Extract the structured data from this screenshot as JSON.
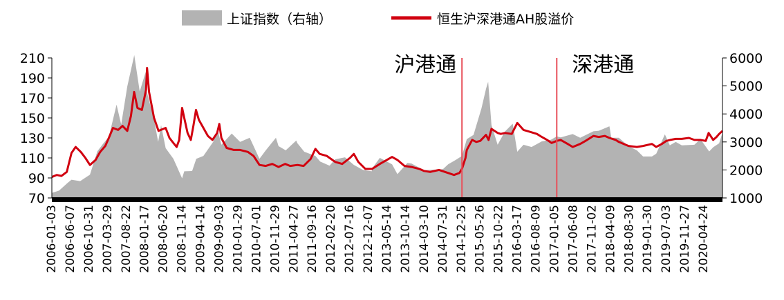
{
  "chart_data": {
    "type": "line",
    "legend": {
      "placement": "top",
      "entries": [
        {
          "label": "上证指数（右轴）",
          "kind": "area",
          "color": "#b3b3b3"
        },
        {
          "label": "恒生沪深港通AH股溢价",
          "kind": "line",
          "color": "#d1000f"
        }
      ]
    },
    "y_left": {
      "ticks": [
        70,
        90,
        110,
        130,
        150,
        170,
        190,
        210
      ],
      "range": [
        70,
        210
      ]
    },
    "y_right": {
      "ticks": [
        1000,
        2000,
        3000,
        4000,
        5000,
        6000
      ],
      "range": [
        1000,
        6000
      ]
    },
    "x_labels": [
      "2006-01-03",
      "2006-06-07",
      "2006-10-31",
      "2007-03-29",
      "2007-08-22",
      "2008-01-17",
      "2008-06-20",
      "2008-11-14",
      "2009-04-14",
      "2009-09-03",
      "2010-01-29",
      "2010-07-01",
      "2010-11-29",
      "2011-04-27",
      "2011-09-16",
      "2012-02-20",
      "2012-07-16",
      "2012-12-07",
      "2013-05-14",
      "2013-10-14",
      "2014-03-10",
      "2014-07-31",
      "2014-12-25",
      "2015-05-26",
      "2015-10-22",
      "2016-03-17",
      "2016-08-09",
      "2017-01-05",
      "2017-06-08",
      "2017-11-02",
      "2018-04-09",
      "2018-08-30",
      "2019-01-30",
      "2019-07-03",
      "2019-11-27",
      "2020-04-24"
    ],
    "annotations": [
      {
        "text": "沪港通",
        "date": "2014-11-17"
      },
      {
        "text": "深港通",
        "date": "2016-12-05"
      }
    ],
    "series": [
      {
        "name": "上证指数（右轴）",
        "axis": "right",
        "type": "area",
        "points": [
          [
            "2006-01-03",
            1180
          ],
          [
            "2006-03-01",
            1260
          ],
          [
            "2006-05-10",
            1550
          ],
          [
            "2006-06-07",
            1650
          ],
          [
            "2006-08-15",
            1600
          ],
          [
            "2006-10-31",
            1830
          ],
          [
            "2006-12-29",
            2670
          ],
          [
            "2007-02-15",
            2950
          ],
          [
            "2007-03-29",
            3180
          ],
          [
            "2007-05-29",
            4330
          ],
          [
            "2007-07-05",
            3620
          ],
          [
            "2007-08-22",
            4980
          ],
          [
            "2007-10-16",
            6100
          ],
          [
            "2007-11-28",
            4800
          ],
          [
            "2008-01-14",
            5500
          ],
          [
            "2008-01-17",
            4900
          ],
          [
            "2008-03-20",
            3800
          ],
          [
            "2008-04-22",
            3000
          ],
          [
            "2008-05-15",
            3600
          ],
          [
            "2008-06-20",
            2780
          ],
          [
            "2008-08-20",
            2400
          ],
          [
            "2008-10-28",
            1700
          ],
          [
            "2008-11-14",
            1950
          ],
          [
            "2009-01-15",
            1960
          ],
          [
            "2009-02-17",
            2400
          ],
          [
            "2009-04-14",
            2500
          ],
          [
            "2009-06-30",
            3000
          ],
          [
            "2009-08-04",
            3450
          ],
          [
            "2009-09-03",
            2900
          ],
          [
            "2009-11-24",
            3300
          ],
          [
            "2010-01-29",
            3000
          ],
          [
            "2010-04-15",
            3150
          ],
          [
            "2010-07-01",
            2400
          ],
          [
            "2010-08-20",
            2700
          ],
          [
            "2010-11-08",
            3150
          ],
          [
            "2010-11-29",
            2850
          ],
          [
            "2011-01-25",
            2700
          ],
          [
            "2011-04-18",
            3050
          ],
          [
            "2011-04-27",
            2950
          ],
          [
            "2011-06-20",
            2650
          ],
          [
            "2011-09-16",
            2500
          ],
          [
            "2011-10-24",
            2300
          ],
          [
            "2012-01-06",
            2150
          ],
          [
            "2012-02-20",
            2380
          ],
          [
            "2012-05-07",
            2450
          ],
          [
            "2012-07-16",
            2180
          ],
          [
            "2012-09-26",
            2000
          ],
          [
            "2012-12-04",
            1950
          ],
          [
            "2012-12-07",
            2050
          ],
          [
            "2013-02-06",
            2430
          ],
          [
            "2013-05-14",
            2200
          ],
          [
            "2013-06-25",
            1850
          ],
          [
            "2013-09-12",
            2250
          ],
          [
            "2013-10-14",
            2230
          ],
          [
            "2014-01-20",
            1990
          ],
          [
            "2014-03-10",
            2000
          ],
          [
            "2014-06-20",
            2030
          ],
          [
            "2014-07-31",
            2200
          ],
          [
            "2014-09-30",
            2360
          ],
          [
            "2014-11-17",
            2500
          ],
          [
            "2014-12-25",
            3100
          ],
          [
            "2015-02-16",
            3250
          ],
          [
            "2015-04-20",
            4200
          ],
          [
            "2015-05-26",
            4900
          ],
          [
            "2015-06-12",
            5150
          ],
          [
            "2015-07-08",
            3600
          ],
          [
            "2015-08-26",
            2900
          ],
          [
            "2015-10-22",
            3370
          ],
          [
            "2015-12-23",
            3650
          ],
          [
            "2016-01-28",
            2650
          ],
          [
            "2016-03-17",
            2900
          ],
          [
            "2016-05-20",
            2820
          ],
          [
            "2016-08-09",
            3020
          ],
          [
            "2016-10-20",
            3080
          ],
          [
            "2016-12-05",
            3200
          ],
          [
            "2017-01-05",
            3160
          ],
          [
            "2017-04-10",
            3280
          ],
          [
            "2017-06-08",
            3150
          ],
          [
            "2017-09-20",
            3380
          ],
          [
            "2017-11-02",
            3400
          ],
          [
            "2018-01-25",
            3560
          ],
          [
            "2018-02-09",
            3150
          ],
          [
            "2018-04-09",
            3150
          ],
          [
            "2018-06-25",
            2850
          ],
          [
            "2018-08-30",
            2700
          ],
          [
            "2018-10-18",
            2480
          ],
          [
            "2018-12-27",
            2480
          ],
          [
            "2019-01-30",
            2580
          ],
          [
            "2019-04-08",
            3270
          ],
          [
            "2019-05-17",
            2880
          ],
          [
            "2019-07-03",
            3000
          ],
          [
            "2019-08-20",
            2880
          ],
          [
            "2019-11-27",
            2900
          ],
          [
            "2020-01-14",
            3100
          ],
          [
            "2020-03-23",
            2660
          ],
          [
            "2020-04-24",
            2810
          ],
          [
            "2020-06-10",
            2950
          ],
          [
            "2020-07-06",
            3330
          ]
        ]
      },
      {
        "name": "恒生沪深港通AH股溢价",
        "axis": "left",
        "type": "line",
        "points": [
          [
            "2006-01-03",
            91
          ],
          [
            "2006-02-10",
            93
          ],
          [
            "2006-03-20",
            92
          ],
          [
            "2006-05-01",
            96
          ],
          [
            "2006-06-07",
            115
          ],
          [
            "2006-07-10",
            121
          ],
          [
            "2006-08-20",
            116
          ],
          [
            "2006-09-25",
            110
          ],
          [
            "2006-10-31",
            103
          ],
          [
            "2006-12-15",
            108
          ],
          [
            "2007-01-20",
            116
          ],
          [
            "2007-03-01",
            122
          ],
          [
            "2007-03-29",
            130
          ],
          [
            "2007-05-01",
            140
          ],
          [
            "2007-06-10",
            138
          ],
          [
            "2007-07-15",
            142
          ],
          [
            "2007-08-22",
            137
          ],
          [
            "2007-09-20",
            152
          ],
          [
            "2007-10-15",
            176
          ],
          [
            "2007-11-10",
            160
          ],
          [
            "2007-12-15",
            158
          ],
          [
            "2008-01-17",
            178
          ],
          [
            "2008-01-25",
            200
          ],
          [
            "2008-02-10",
            176
          ],
          [
            "2008-03-20",
            150
          ],
          [
            "2008-04-25",
            137
          ],
          [
            "2008-06-20",
            140
          ],
          [
            "2008-07-20",
            130
          ],
          [
            "2008-08-20",
            125
          ],
          [
            "2008-09-15",
            121
          ],
          [
            "2008-10-05",
            128
          ],
          [
            "2008-10-28",
            160
          ],
          [
            "2008-11-14",
            150
          ],
          [
            "2008-12-10",
            135
          ],
          [
            "2009-01-05",
            128
          ],
          [
            "2009-01-25",
            142
          ],
          [
            "2009-02-15",
            158
          ],
          [
            "2009-03-10",
            148
          ],
          [
            "2009-04-14",
            140
          ],
          [
            "2009-05-20",
            132
          ],
          [
            "2009-06-25",
            128
          ],
          [
            "2009-08-01",
            135
          ],
          [
            "2009-08-18",
            144
          ],
          [
            "2009-09-03",
            130
          ],
          [
            "2009-10-15",
            120
          ],
          [
            "2009-12-10",
            118
          ],
          [
            "2010-01-29",
            118
          ],
          [
            "2010-04-01",
            116
          ],
          [
            "2010-05-15",
            112
          ],
          [
            "2010-07-01",
            103
          ],
          [
            "2010-08-20",
            102
          ],
          [
            "2010-10-10",
            104
          ],
          [
            "2010-11-29",
            101
          ],
          [
            "2011-01-20",
            104
          ],
          [
            "2011-03-01",
            102
          ],
          [
            "2011-04-27",
            103
          ],
          [
            "2011-06-15",
            102
          ],
          [
            "2011-08-10",
            109
          ],
          [
            "2011-09-16",
            119
          ],
          [
            "2011-10-20",
            114
          ],
          [
            "2011-12-15",
            112
          ],
          [
            "2012-02-20",
            106
          ],
          [
            "2012-04-15",
            104
          ],
          [
            "2012-06-15",
            110
          ],
          [
            "2012-07-16",
            114
          ],
          [
            "2012-08-20",
            106
          ],
          [
            "2012-10-15",
            99
          ],
          [
            "2012-12-07",
            99
          ],
          [
            "2013-02-06",
            104
          ],
          [
            "2013-03-20",
            107
          ],
          [
            "2013-05-14",
            111
          ],
          [
            "2013-06-25",
            108
          ],
          [
            "2013-08-20",
            102
          ],
          [
            "2013-10-14",
            101
          ],
          [
            "2013-12-15",
            99
          ],
          [
            "2014-01-20",
            97
          ],
          [
            "2014-03-10",
            96
          ],
          [
            "2014-05-20",
            98
          ],
          [
            "2014-07-31",
            95
          ],
          [
            "2014-09-15",
            93
          ],
          [
            "2014-10-28",
            95
          ],
          [
            "2014-11-17",
            99
          ],
          [
            "2014-12-15",
            110
          ],
          [
            "2014-12-25",
            118
          ],
          [
            "2015-02-05",
            128
          ],
          [
            "2015-03-10",
            126
          ],
          [
            "2015-04-10",
            127
          ],
          [
            "2015-05-26",
            133
          ],
          [
            "2015-06-15",
            128
          ],
          [
            "2015-07-08",
            139
          ],
          [
            "2015-08-26",
            135
          ],
          [
            "2015-09-20",
            134
          ],
          [
            "2015-10-22",
            135
          ],
          [
            "2015-12-15",
            134
          ],
          [
            "2016-01-28",
            145
          ],
          [
            "2016-03-17",
            138
          ],
          [
            "2016-05-10",
            136
          ],
          [
            "2016-07-01",
            134
          ],
          [
            "2016-08-09",
            131
          ],
          [
            "2016-09-20",
            128
          ],
          [
            "2016-10-25",
            125
          ],
          [
            "2016-12-05",
            127
          ],
          [
            "2017-01-05",
            128
          ],
          [
            "2017-03-01",
            124
          ],
          [
            "2017-04-10",
            121
          ],
          [
            "2017-06-08",
            124
          ],
          [
            "2017-07-20",
            127
          ],
          [
            "2017-09-20",
            132
          ],
          [
            "2017-11-02",
            131
          ],
          [
            "2017-12-20",
            132
          ],
          [
            "2018-01-25",
            130
          ],
          [
            "2018-03-15",
            128
          ],
          [
            "2018-04-09",
            126
          ],
          [
            "2018-06-25",
            122
          ],
          [
            "2018-08-30",
            121
          ],
          [
            "2018-10-18",
            122
          ],
          [
            "2018-12-27",
            124
          ],
          [
            "2019-01-30",
            121
          ],
          [
            "2019-03-15",
            124
          ],
          [
            "2019-04-20",
            127
          ],
          [
            "2019-05-20",
            128
          ],
          [
            "2019-07-03",
            129
          ],
          [
            "2019-08-20",
            129
          ],
          [
            "2019-10-15",
            130
          ],
          [
            "2019-11-27",
            128
          ],
          [
            "2020-01-14",
            128
          ],
          [
            "2020-02-25",
            127
          ],
          [
            "2020-03-19",
            135
          ],
          [
            "2020-04-24",
            128
          ],
          [
            "2020-05-20",
            131
          ],
          [
            "2020-06-10",
            134
          ],
          [
            "2020-07-06",
            137
          ]
        ]
      }
    ]
  }
}
